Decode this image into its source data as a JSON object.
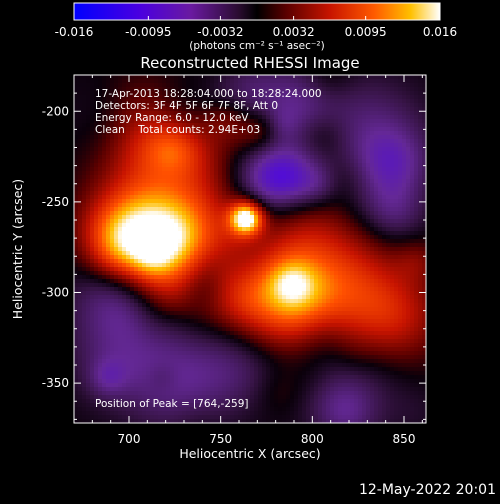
{
  "colorbar": {
    "tick_labels": [
      "-0.016",
      "-0.0095",
      "-0.0032",
      "0.0032",
      "0.0095",
      "0.016"
    ],
    "tick_values": [
      -0.016,
      -0.0095,
      -0.0032,
      0.0032,
      0.0095,
      0.016
    ],
    "range": [
      -0.016,
      0.016
    ],
    "unit_label": "(photons cm⁻² s⁻¹ asec⁻²)"
  },
  "title": "Reconstructed RHESSI Image",
  "overlay_text": {
    "time_range": "17-Apr-2013 18:28:04.000 to 18:28:24.000",
    "detectors": "Detectors: 3F 4F 5F 6F 7F 8F, Att 0",
    "energy_range": "Energy Range: 6.0 - 12.0 keV",
    "algorithm": "Clean    Total counts: 2.94E+03",
    "peak_position": "Position of Peak = [764,-259]"
  },
  "axes": {
    "x_label": "Heliocentric X (arcsec)",
    "y_label": "Heliocentric Y (arcsec)",
    "x_tick_labels": [
      "700",
      "750",
      "800",
      "850"
    ],
    "x_tick_values": [
      700,
      750,
      800,
      850
    ],
    "y_tick_labels": [
      "-200",
      "-250",
      "-300",
      "-350"
    ],
    "y_tick_values": [
      -200,
      -250,
      -300,
      -350
    ],
    "x_range": [
      670,
      862
    ],
    "y_range": [
      -372,
      -180
    ]
  },
  "peak": {
    "x": 764,
    "y": -259
  },
  "footer_date": "12-May-2022 20:01",
  "colors": {
    "background": "#000000",
    "palette": [
      "#0000ff",
      "#6a00c8",
      "#5a2a8a",
      "#2a1030",
      "#000000",
      "#5a0000",
      "#c81400",
      "#ff5000",
      "#ffb400",
      "#ffffff"
    ]
  }
}
